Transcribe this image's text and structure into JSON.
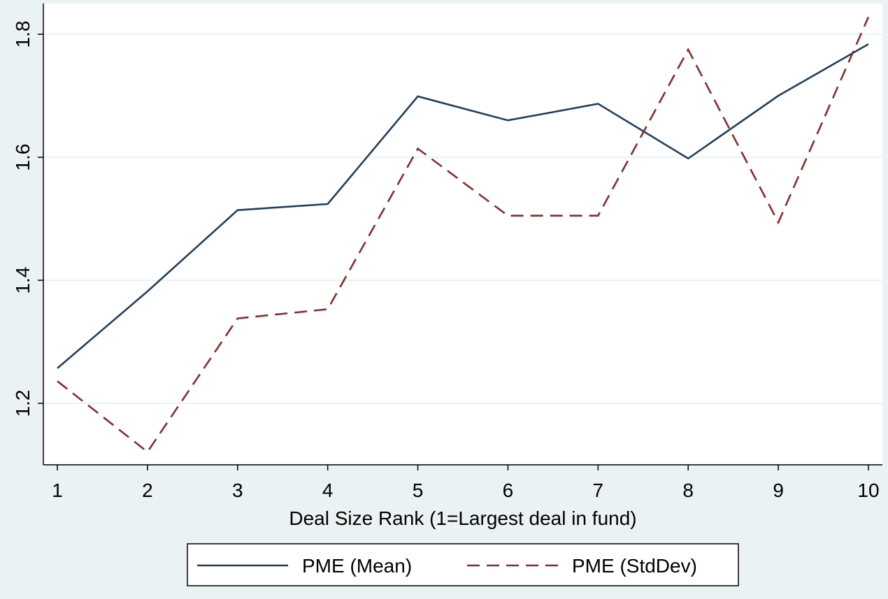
{
  "chart_data": {
    "type": "line",
    "title": "",
    "xlabel": "Deal Size Rank (1=Largest deal in fund)",
    "ylabel": "",
    "x": [
      1,
      2,
      3,
      4,
      5,
      6,
      7,
      8,
      9,
      10
    ],
    "xticks": [
      "1",
      "2",
      "3",
      "4",
      "5",
      "6",
      "7",
      "8",
      "9",
      "10"
    ],
    "yticks": [
      "1.2",
      "1.4",
      "1.6",
      "1.8"
    ],
    "ylim": [
      1.1,
      1.85
    ],
    "grid": true,
    "legend_position": "bottom",
    "series": [
      {
        "name": "PME (Mean)",
        "values": [
          1.257,
          1.382,
          1.514,
          1.524,
          1.699,
          1.66,
          1.687,
          1.598,
          1.7,
          1.784
        ],
        "color": "#1f3f5f",
        "style": "solid"
      },
      {
        "name": "PME (StdDev)",
        "values": [
          1.236,
          1.121,
          1.338,
          1.353,
          1.614,
          1.505,
          1.505,
          1.775,
          1.494,
          1.828
        ],
        "color": "#8b2b2b",
        "style": "dashed"
      }
    ]
  }
}
